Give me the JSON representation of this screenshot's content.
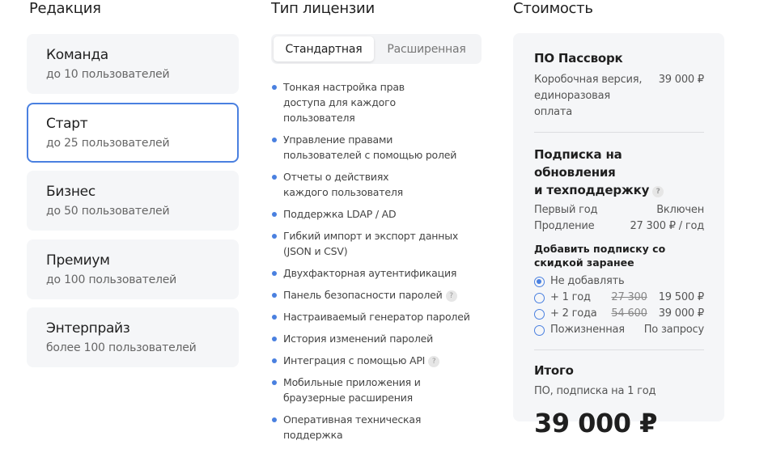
{
  "edition": {
    "heading": "Редакция",
    "items": [
      {
        "title": "Команда",
        "sub": "до 10 пользователей",
        "selected": false
      },
      {
        "title": "Старт",
        "sub": "до 25 пользователей",
        "selected": true
      },
      {
        "title": "Бизнес",
        "sub": "до 50 пользователей",
        "selected": false
      },
      {
        "title": "Премиум",
        "sub": "до 100 пользователей",
        "selected": false
      },
      {
        "title": "Энтерпрайз",
        "sub": "более 100 пользователей",
        "selected": false
      }
    ]
  },
  "license": {
    "heading": "Тип лицензии",
    "tabs": [
      {
        "label": "Стандартная",
        "active": true
      },
      {
        "label": "Расширенная",
        "active": false
      }
    ],
    "features": [
      "Тонкая настройка прав доступа для каждого пользователя",
      "Управление правами пользователей с помощью ролей",
      "Отчеты о действиях каждого пользователя",
      "Поддержка LDAP / AD",
      "Гибкий импорт и экспорт данных (JSON и CSV)",
      "Двухфакторная аутентификация",
      "Панель безопасности паролей",
      "Настраиваемый генератор паролей",
      "История изменений паролей",
      "Интеграция с помощью API",
      "Мобильные приложения и браузерные расширения",
      "Оперативная техническая поддержка"
    ]
  },
  "cost": {
    "heading": "Стоимость",
    "help": "?",
    "software": {
      "title": "ПО Пассворк",
      "label": "Коробочная версия, единоразовая оплата",
      "price": "39 000 ₽"
    },
    "subscription": {
      "title1": "Подписка на обновления",
      "title2": "и техподдержку",
      "first_label": "Первый год",
      "first_value": "Включен",
      "renew_label": "Продление",
      "renew_value": "27 300 ₽ / год"
    },
    "addon": {
      "title": "Добавить подписку со скидкой заранее",
      "options": [
        {
          "label": "Не добавлять",
          "old": "",
          "price": "",
          "checked": true
        },
        {
          "label": "+ 1 год",
          "old": "27 300",
          "price": "19 500 ₽",
          "checked": false
        },
        {
          "label": "+ 2 года",
          "old": "54 600",
          "price": "39 000 ₽",
          "checked": false
        },
        {
          "label": "Пожизненная",
          "old": "",
          "price": "По запросу",
          "checked": false
        }
      ]
    },
    "total": {
      "title": "Итого",
      "sub": "ПО, подписка на 1 год",
      "price": "39 000 ₽"
    }
  },
  "colors": {
    "accent": "#4a80e0",
    "panel": "#f5f6f8"
  }
}
